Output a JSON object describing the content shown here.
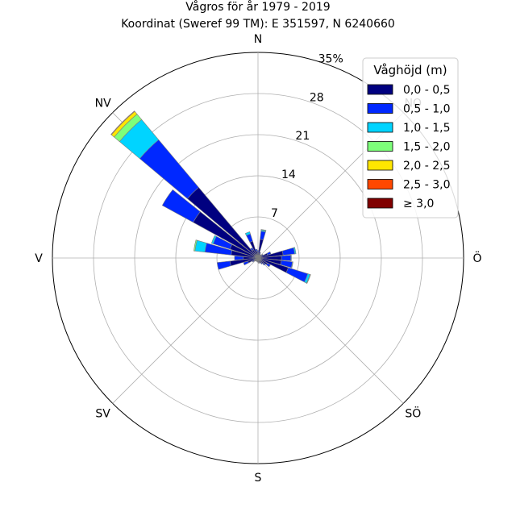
{
  "chart_data": {
    "type": "windrose",
    "title": "Vågros för år 1979 - 2019",
    "subtitle": "Koordinat (Sweref 99 TM): E 351597, N 6240660",
    "directions": [
      "N",
      "NO",
      "Ö",
      "SÖ",
      "S",
      "SV",
      "V",
      "NV"
    ],
    "radial_ticks": [
      "7",
      "14",
      "21",
      "28",
      "35%"
    ],
    "radial_values": [
      7,
      14,
      21,
      28,
      35
    ],
    "rmax": 35,
    "grid": true,
    "legend": {
      "title": "Våghöjd (m)",
      "placement": "top-right",
      "entries": [
        {
          "label": "0,0 - 0,5",
          "color": "#000080"
        },
        {
          "label": "0,5 - 1,0",
          "color": "#0028ff"
        },
        {
          "label": "1,0 - 1,5",
          "color": "#00d4ff"
        },
        {
          "label": "1,5 - 2,0",
          "color": "#7dff7a"
        },
        {
          "label": "2,0 - 2,5",
          "color": "#ffe600"
        },
        {
          "label": "2,5 - 3,0",
          "color": "#ff4800"
        },
        {
          "label": "≥ 3,0",
          "color": "#800000"
        }
      ]
    },
    "sectors": [
      {
        "angle": 0,
        "values": [
          1.0,
          0.3,
          0.0,
          0.0,
          0.0,
          0.0,
          0.0
        ]
      },
      {
        "angle": 11.25,
        "values": [
          3.2,
          1.4,
          0.2,
          0.1,
          0.0,
          0.0,
          0.0
        ]
      },
      {
        "angle": 22.5,
        "values": [
          0.8,
          0.2,
          0.0,
          0.0,
          0.0,
          0.0,
          0.0
        ]
      },
      {
        "angle": 33.75,
        "values": [
          0.5,
          0.2,
          0.0,
          0.0,
          0.0,
          0.0,
          0.0
        ]
      },
      {
        "angle": 45,
        "values": [
          0.5,
          0.2,
          0.0,
          0.0,
          0.0,
          0.0,
          0.0
        ]
      },
      {
        "angle": 56.25,
        "values": [
          0.8,
          0.2,
          0.0,
          0.0,
          0.0,
          0.0,
          0.0
        ]
      },
      {
        "angle": 67.5,
        "values": [
          1.7,
          0.6,
          0.0,
          0.0,
          0.0,
          0.0,
          0.0
        ]
      },
      {
        "angle": 78.75,
        "values": [
          4.3,
          2.0,
          0.2,
          0.0,
          0.0,
          0.0,
          0.0
        ]
      },
      {
        "angle": 90,
        "values": [
          4.0,
          1.6,
          0.1,
          0.0,
          0.0,
          0.0,
          0.0
        ]
      },
      {
        "angle": 101.25,
        "values": [
          4.0,
          1.9,
          0.1,
          0.0,
          0.0,
          0.0,
          0.0
        ]
      },
      {
        "angle": 112.5,
        "values": [
          5.4,
          3.5,
          0.4,
          0.1,
          0.0,
          0.0,
          0.0
        ]
      },
      {
        "angle": 123.75,
        "values": [
          1.8,
          0.6,
          0.0,
          0.0,
          0.0,
          0.0,
          0.0
        ]
      },
      {
        "angle": 135,
        "values": [
          1.3,
          0.3,
          0.0,
          0.0,
          0.0,
          0.0,
          0.0
        ]
      },
      {
        "angle": 146.25,
        "values": [
          1.0,
          0.2,
          0.0,
          0.0,
          0.0,
          0.0,
          0.0
        ]
      },
      {
        "angle": 157.5,
        "values": [
          0.8,
          0.1,
          0.0,
          0.0,
          0.0,
          0.0,
          0.0
        ]
      },
      {
        "angle": 168.75,
        "values": [
          0.8,
          0.1,
          0.0,
          0.0,
          0.0,
          0.0,
          0.0
        ]
      },
      {
        "angle": 180,
        "values": [
          0.6,
          0.1,
          0.0,
          0.0,
          0.0,
          0.0,
          0.0
        ]
      },
      {
        "angle": 191.25,
        "values": [
          0.6,
          0.1,
          0.0,
          0.0,
          0.0,
          0.0,
          0.0
        ]
      },
      {
        "angle": 202.5,
        "values": [
          0.5,
          0.1,
          0.0,
          0.0,
          0.0,
          0.0,
          0.0
        ]
      },
      {
        "angle": 213.75,
        "values": [
          0.5,
          0.1,
          0.0,
          0.0,
          0.0,
          0.0,
          0.0
        ]
      },
      {
        "angle": 225,
        "values": [
          0.6,
          0.1,
          0.0,
          0.0,
          0.0,
          0.0,
          0.0
        ]
      },
      {
        "angle": 236.25,
        "values": [
          0.8,
          0.3,
          0.0,
          0.0,
          0.0,
          0.0,
          0.0
        ]
      },
      {
        "angle": 247.5,
        "values": [
          1.8,
          0.8,
          0.0,
          0.0,
          0.0,
          0.0,
          0.0
        ]
      },
      {
        "angle": 258.75,
        "values": [
          4.8,
          2.2,
          0.0,
          0.0,
          0.0,
          0.0,
          0.0
        ]
      },
      {
        "angle": 270,
        "values": [
          2.5,
          1.5,
          0.0,
          0.0,
          0.0,
          0.0,
          0.0
        ]
      },
      {
        "angle": 281.25,
        "values": [
          4.6,
          4.5,
          1.7,
          0.2,
          0.0,
          0.0,
          0.0
        ]
      },
      {
        "angle": 292.5,
        "values": [
          5.0,
          3.0,
          0.3,
          0.0,
          0.0,
          0.0,
          0.0
        ]
      },
      {
        "angle": 303.75,
        "values": [
          12.6,
          6.0,
          0.0,
          0.0,
          0.0,
          0.0,
          0.0
        ]
      },
      {
        "angle": 315,
        "values": [
          15.7,
          10.6,
          4.5,
          1.2,
          0.6,
          0.1,
          0.0
        ]
      },
      {
        "angle": 326.25,
        "values": [
          1.6,
          0.4,
          0.0,
          0.0,
          0.0,
          0.0,
          0.0
        ]
      },
      {
        "angle": 337.5,
        "values": [
          3.0,
          1.3,
          0.4,
          0.0,
          0.0,
          0.0,
          0.0
        ]
      },
      {
        "angle": 348.75,
        "values": [
          1.2,
          0.3,
          0.0,
          0.0,
          0.0,
          0.0,
          0.0
        ]
      }
    ]
  }
}
